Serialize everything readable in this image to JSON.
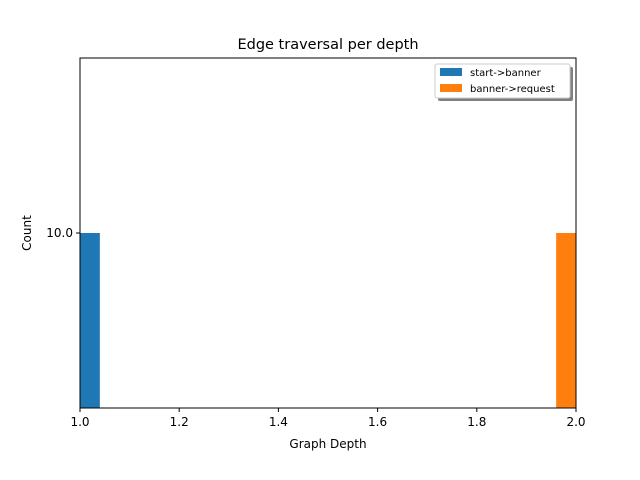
{
  "chart_data": {
    "type": "bar",
    "title": "Edge traversal per depth",
    "xlabel": "Graph Depth",
    "ylabel": "Count",
    "xlim": [
      1.0,
      2.0
    ],
    "ylim": [
      0,
      20
    ],
    "x_ticks": [
      "1.0",
      "1.2",
      "1.4",
      "1.6",
      "1.8",
      "2.0"
    ],
    "x_tick_values": [
      1.0,
      1.2,
      1.4,
      1.6,
      1.8,
      2.0
    ],
    "y_ticks": [
      "10.0"
    ],
    "y_tick_values": [
      10.0
    ],
    "bar_width": 0.04,
    "grid": false,
    "legend_position": "top-right",
    "series": [
      {
        "name": "start->banner",
        "color": "#1f77b4",
        "x": [
          1.0
        ],
        "values": [
          10.0
        ]
      },
      {
        "name": "banner->request",
        "color": "#ff7f0e",
        "x": [
          1.96
        ],
        "values": [
          10.0
        ]
      }
    ]
  }
}
